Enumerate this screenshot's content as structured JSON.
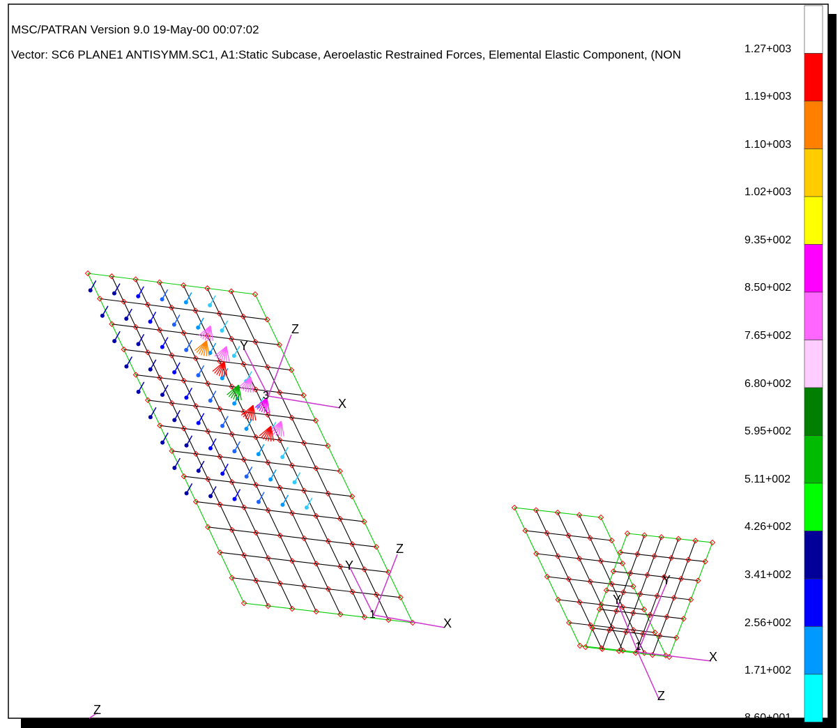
{
  "header": {
    "title": "MSC/PATRAN Version 9.0 19-May-00 00:07:02",
    "subtitle": "Vector: SC6 PLANE1  ANTISYMM.SC1, A1:Static Subcase, Aeroelastic Restrained Forces, Elemental Elastic Component, (NON"
  },
  "legend": {
    "labels": [
      "1.27+003",
      "1.19+003",
      "1.10+003",
      "1.02+003",
      "9.35+002",
      "8.50+002",
      "7.65+002",
      "6.80+002",
      "5.95+002",
      "5.11+002",
      "4.26+002",
      "3.41+002",
      "2.56+002",
      "1.71+002",
      "8.60+001"
    ],
    "colors": [
      "#ffffff",
      "#ff0000",
      "#ff7f00",
      "#ffcc00",
      "#ffff00",
      "#ff00ff",
      "#ff66ff",
      "#ffccff",
      "#007f00",
      "#00bb00",
      "#00ff00",
      "#000099",
      "#0000ff",
      "#0099ff",
      "#00ffff"
    ]
  },
  "axes": {
    "triad1": {
      "x": "X",
      "y": "Y",
      "z": "Z",
      "id": "3"
    },
    "triad2": {
      "x": "X",
      "y": "Y",
      "z": "Z",
      "id": "1"
    },
    "triad3": {
      "x": "X",
      "y": "Y",
      "z": "Z",
      "id": "1"
    },
    "triad4": {
      "x": "X",
      "y": "Y",
      "z": "Z",
      "id": "1"
    },
    "triad_corner": {
      "z": "Z"
    }
  },
  "colors": {
    "mesh_edge": "#00cc00",
    "mesh_line": "#000000",
    "node": "#ff0000",
    "axis": "#cc33cc"
  }
}
